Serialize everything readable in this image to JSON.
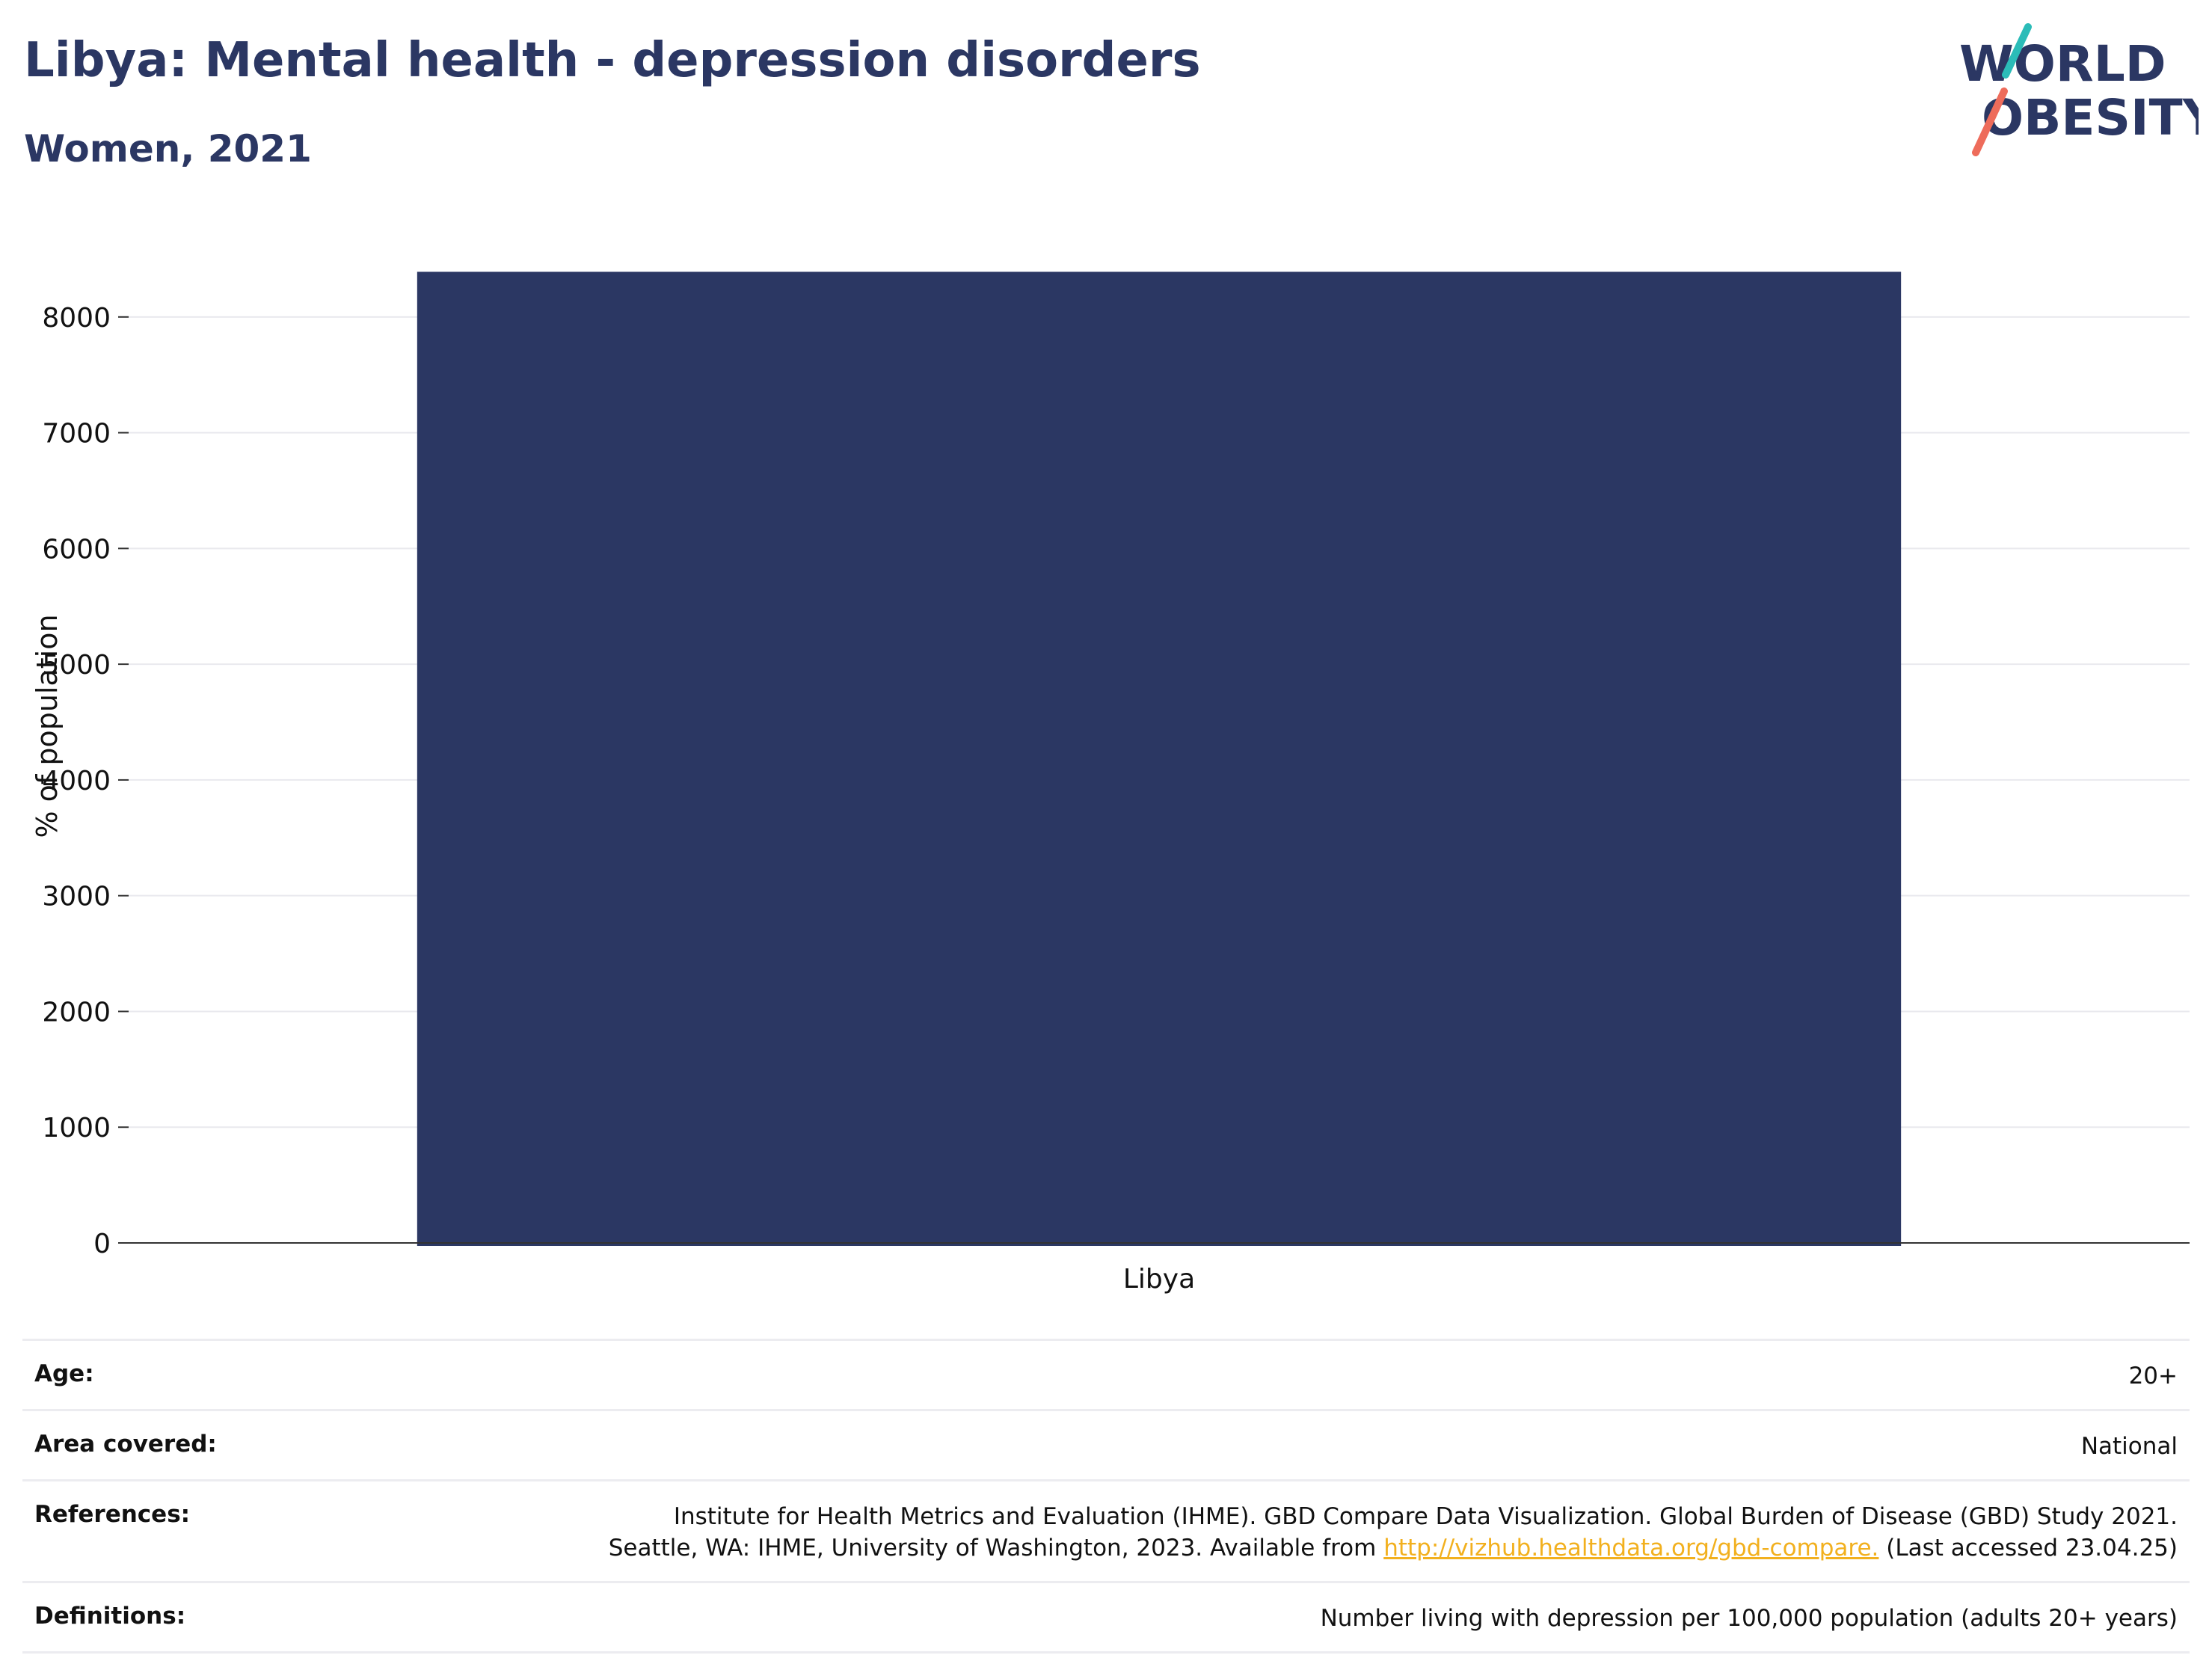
{
  "header": {
    "title": "Libya: Mental health - depression disorders",
    "subtitle": "Women, 2021"
  },
  "logo": {
    "line1": "WORLD",
    "line2": "OBESITY",
    "colors": {
      "text": "#2b3763",
      "slash_teal": "#2bbcb8",
      "slash_coral": "#ee6c5b"
    }
  },
  "chart_data": {
    "type": "bar",
    "categories": [
      "Libya"
    ],
    "values": [
      8390
    ],
    "title": "",
    "xlabel": "",
    "ylabel": "% of population",
    "ylim": [
      0,
      8800
    ],
    "yticks": [
      0,
      1000,
      2000,
      3000,
      4000,
      5000,
      6000,
      7000,
      8000
    ],
    "grid": true,
    "bar_color": "#2b3763"
  },
  "meta": {
    "age": {
      "label": "Age:",
      "value": "20+"
    },
    "area": {
      "label": "Area covered:",
      "value": "National"
    },
    "references": {
      "label": "References:",
      "line1": "Institute for Health Metrics and Evaluation (IHME). GBD Compare Data Visualization. Global Burden of Disease (GBD) Study 2021.",
      "line2_pre": "Seattle, WA: IHME, University of Washington, 2023. Available from",
      "link": "http://vizhub.healthdata.org/gbd-compare.",
      "line2_post": "(Last accessed 23.04.25)"
    },
    "definitions": {
      "label": "Definitions:",
      "value": "Number living with depression per 100,000 population (adults 20+ years)"
    }
  }
}
